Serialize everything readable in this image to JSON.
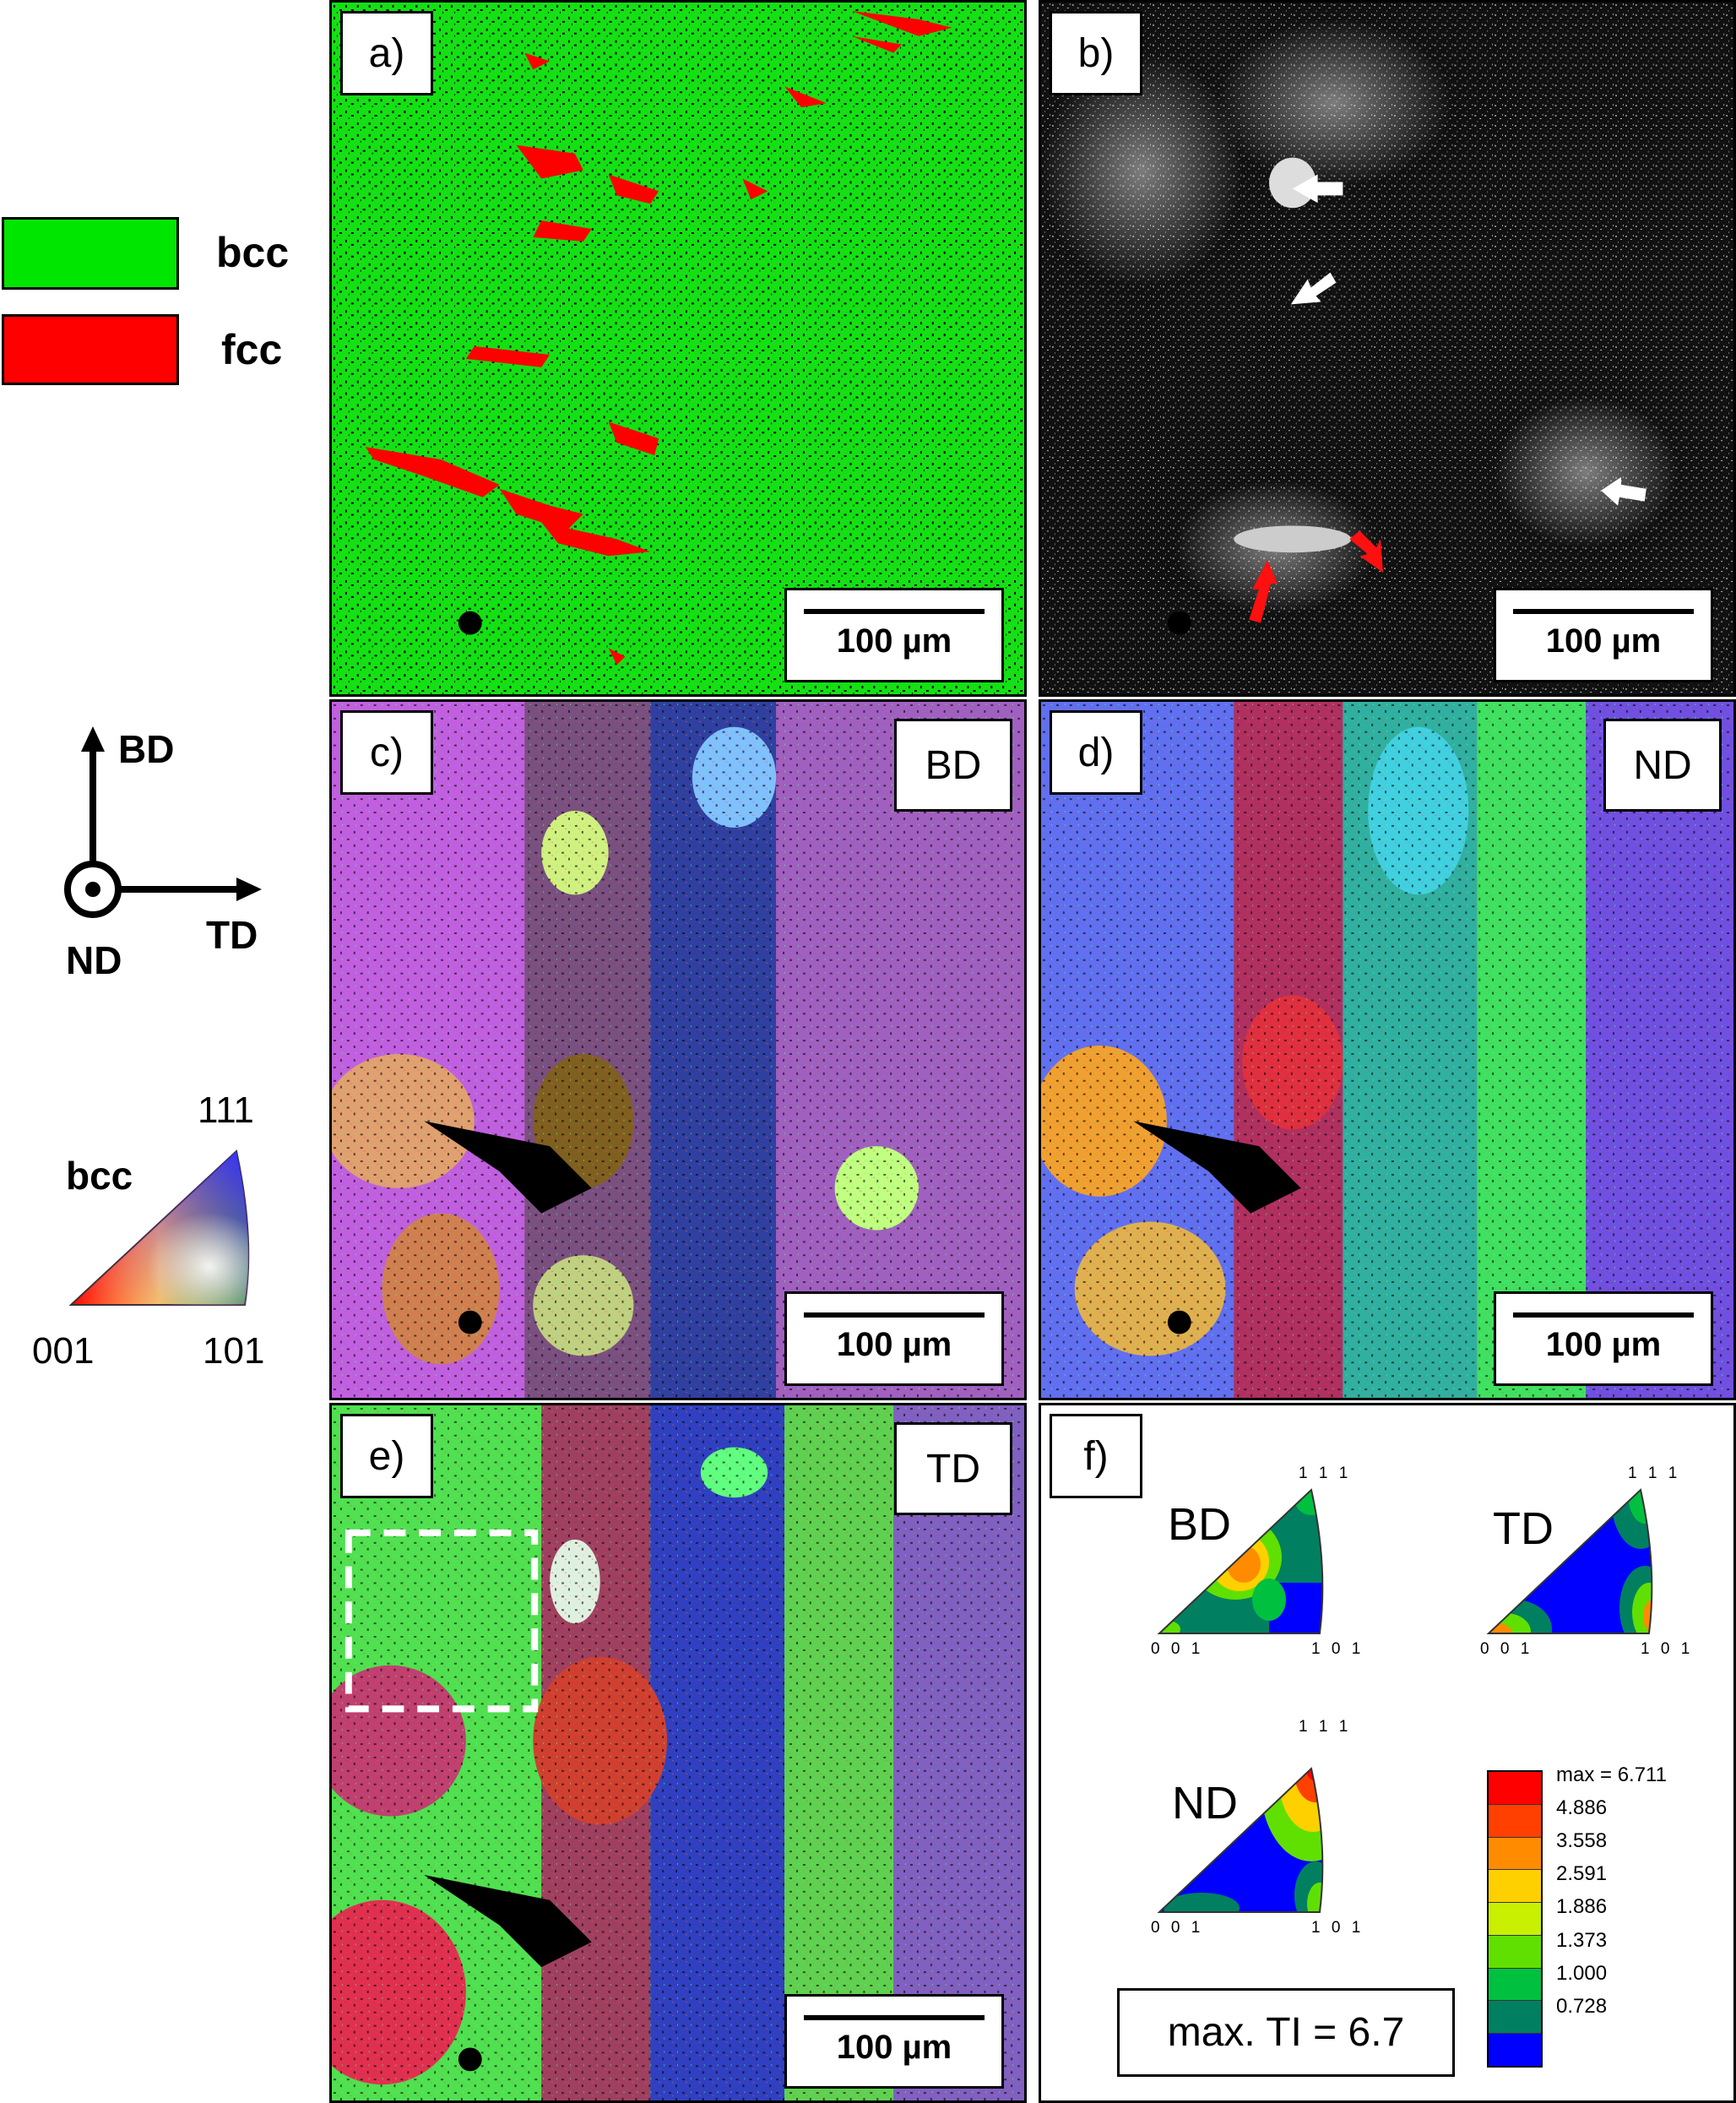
{
  "legend": {
    "phases": [
      {
        "label": "bcc",
        "color": "#00e600"
      },
      {
        "label": "fcc",
        "color": "#ff0000"
      }
    ],
    "axes": {
      "up": "BD",
      "right": "TD",
      "out": "ND"
    },
    "ipf_key": {
      "title": "bcc",
      "top": "111",
      "left": "001",
      "right": "101"
    }
  },
  "panels": {
    "a": {
      "label": "a)",
      "scale": "100 µm"
    },
    "b": {
      "label": "b)",
      "scale": "100 µm"
    },
    "c": {
      "label": "c)",
      "direction": "BD",
      "scale": "100 µm"
    },
    "d": {
      "label": "d)",
      "direction": "ND",
      "scale": "100 µm"
    },
    "e": {
      "label": "e)",
      "direction": "TD",
      "scale": "100 µm"
    },
    "f": {
      "label": "f)",
      "ipf": [
        {
          "dir": "BD",
          "top": "1 1 1",
          "left": "0 0 1",
          "right": "1 0 1"
        },
        {
          "dir": "TD",
          "top": "1 1 1",
          "left": "0 0 1",
          "right": "1 0 1"
        },
        {
          "dir": "ND",
          "top": "1 1 1",
          "left": "0 0 1",
          "right": "1 0 1"
        }
      ],
      "colorbar": [
        {
          "value": "max = 6.711",
          "color": "#ff0000"
        },
        {
          "value": "4.886",
          "color": "#ff4000"
        },
        {
          "value": "3.558",
          "color": "#ff8c00"
        },
        {
          "value": "2.591",
          "color": "#ffd000"
        },
        {
          "value": "1.886",
          "color": "#c8f000"
        },
        {
          "value": "1.373",
          "color": "#60e000"
        },
        {
          "value": "1.000",
          "color": "#00c040"
        },
        {
          "value": "0.728",
          "color": "#008060"
        },
        {
          "value": "",
          "color": "#0000ff"
        }
      ],
      "max_ti": "max. TI = 6.7"
    }
  }
}
